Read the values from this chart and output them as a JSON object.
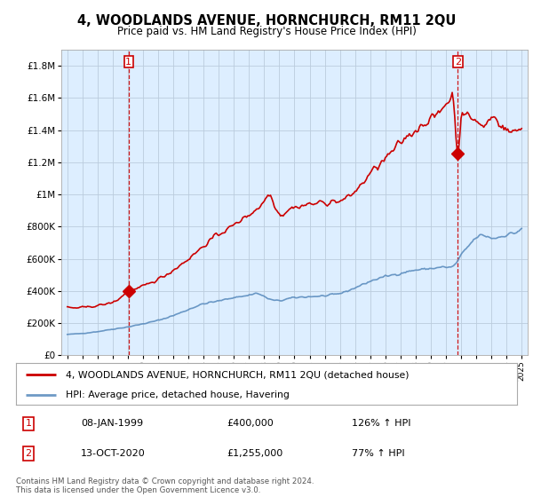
{
  "title": "4, WOODLANDS AVENUE, HORNCHURCH, RM11 2QU",
  "subtitle": "Price paid vs. HM Land Registry's House Price Index (HPI)",
  "legend_line1": "4, WOODLANDS AVENUE, HORNCHURCH, RM11 2QU (detached house)",
  "legend_line2": "HPI: Average price, detached house, Havering",
  "footer": "Contains HM Land Registry data © Crown copyright and database right 2024.\nThis data is licensed under the Open Government Licence v3.0.",
  "point1_date": "08-JAN-1999",
  "point1_price": "£400,000",
  "point1_hpi": "126% ↑ HPI",
  "point2_date": "13-OCT-2020",
  "point2_price": "£1,255,000",
  "point2_hpi": "77% ↑ HPI",
  "red_color": "#cc0000",
  "blue_color": "#5588bb",
  "chart_bg": "#ddeeff",
  "grid_color": "#bbccdd",
  "background_color": "#ffffff",
  "sale1_year": 1999.04,
  "sale1_value": 400000,
  "sale2_year": 2020.79,
  "sale2_value": 1255000,
  "ylim_min": 0,
  "ylim_max": 1900000,
  "xlim_min": 1994.6,
  "xlim_max": 2025.4
}
